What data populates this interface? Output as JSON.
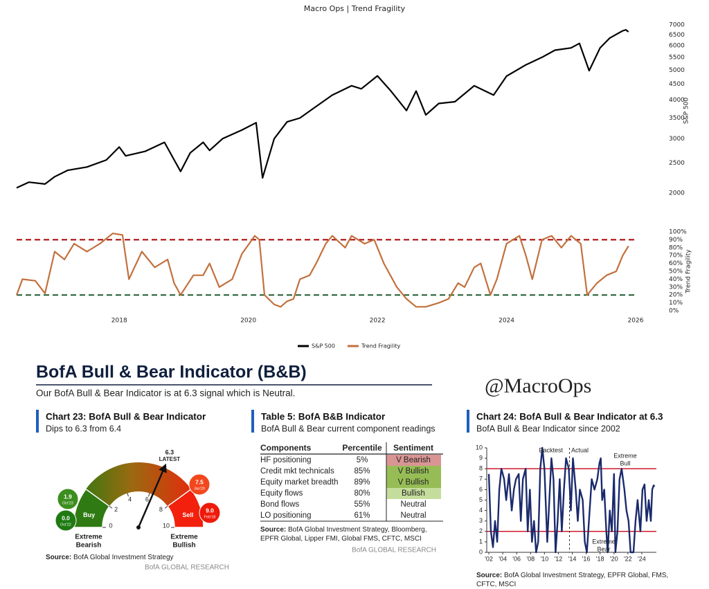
{
  "header": {
    "title": "BofA Bull & Bear Indicator (B&B)",
    "subtitle": "Our BofA Bull & Bear Indicator is at 6.3 signal which is Neutral.",
    "handle": "@MacroOps"
  },
  "chart_data": [
    {
      "type": "line",
      "title": "Macro Ops | Trend Fragility",
      "xlim": [
        2016.41,
        2026
      ],
      "xticks": [
        2018,
        2020,
        2022,
        2024,
        2026
      ],
      "ylog": true,
      "ylim": [
        1890,
        7410
      ],
      "yticks": [
        2000,
        2500,
        3000,
        3500,
        4000,
        4500,
        5000,
        5500,
        6000,
        6500,
        7000
      ],
      "ylabel": "S&P 500",
      "y2lim": [
        -2.6,
        102.6
      ],
      "y2ticks": [
        {
          "value": 0,
          "label": "0%"
        },
        {
          "value": 10,
          "label": "10%"
        },
        {
          "value": 20,
          "label": "20%"
        },
        {
          "value": 30,
          "label": "30%"
        },
        {
          "value": 40,
          "label": "40%"
        },
        {
          "value": 50,
          "label": "50%"
        },
        {
          "value": 60,
          "label": "60%"
        },
        {
          "value": 70,
          "label": "70%"
        },
        {
          "value": 80,
          "label": "80%"
        },
        {
          "value": 90,
          "label": "90%"
        },
        {
          "value": 100,
          "label": "100%"
        }
      ],
      "y2label": "Trend Fragility",
      "hlines": [
        {
          "value": 90,
          "color": "#a80000",
          "axis": "y2"
        },
        {
          "value": 20,
          "color": "#1e5a2e",
          "axis": "y2"
        }
      ],
      "legend": "bottom",
      "series": [
        {
          "name": "S&P 500",
          "color": "#000000",
          "x": [
            2016.41,
            2016.6,
            2016.85,
            2017.0,
            2017.2,
            2017.5,
            2017.8,
            2018.0,
            2018.1,
            2018.4,
            2018.7,
            2018.95,
            2019.1,
            2019.3,
            2019.4,
            2019.6,
            2019.9,
            2020.12,
            2020.22,
            2020.4,
            2020.6,
            2020.8,
            2021.0,
            2021.3,
            2021.6,
            2021.75,
            2022.0,
            2022.2,
            2022.45,
            2022.6,
            2022.75,
            2022.95,
            2023.2,
            2023.5,
            2023.8,
            2024.0,
            2024.3,
            2024.55,
            2024.75,
            2025.0,
            2025.13,
            2025.28,
            2025.45,
            2025.6,
            2025.8,
            2025.85,
            2025.89
          ],
          "values": [
            2080,
            2170,
            2140,
            2260,
            2370,
            2430,
            2560,
            2820,
            2640,
            2730,
            2920,
            2350,
            2700,
            2920,
            2750,
            3000,
            3200,
            3380,
            2240,
            3000,
            3400,
            3500,
            3750,
            4150,
            4450,
            4350,
            4790,
            4300,
            3700,
            4280,
            3580,
            3900,
            3950,
            4450,
            4150,
            4780,
            5200,
            5500,
            5800,
            5900,
            6100,
            4980,
            5900,
            6350,
            6700,
            6750,
            6650
          ]
        },
        {
          "name": "Trend Fragility",
          "color": "#c2703d",
          "axis": "y2",
          "x": [
            2016.41,
            2016.5,
            2016.7,
            2016.85,
            2017.0,
            2017.15,
            2017.3,
            2017.5,
            2017.7,
            2017.9,
            2018.05,
            2018.15,
            2018.35,
            2018.55,
            2018.75,
            2018.85,
            2018.95,
            2019.15,
            2019.3,
            2019.4,
            2019.55,
            2019.75,
            2019.9,
            2020.1,
            2020.17,
            2020.25,
            2020.4,
            2020.5,
            2020.6,
            2020.7,
            2020.8,
            2020.95,
            2021.05,
            2021.2,
            2021.3,
            2021.5,
            2021.6,
            2021.8,
            2021.95,
            2022.1,
            2022.3,
            2022.45,
            2022.6,
            2022.75,
            2022.95,
            2023.1,
            2023.25,
            2023.35,
            2023.5,
            2023.6,
            2023.75,
            2023.85,
            2024.0,
            2024.2,
            2024.3,
            2024.4,
            2024.55,
            2024.7,
            2024.85,
            2025.0,
            2025.15,
            2025.25,
            2025.4,
            2025.55,
            2025.7,
            2025.8,
            2025.89
          ],
          "values": [
            20,
            40,
            38,
            22,
            75,
            65,
            85,
            75,
            85,
            98,
            96,
            40,
            75,
            55,
            65,
            35,
            20,
            45,
            45,
            60,
            30,
            40,
            72,
            95,
            90,
            20,
            8,
            5,
            12,
            15,
            40,
            45,
            60,
            85,
            95,
            80,
            95,
            85,
            90,
            60,
            30,
            15,
            5,
            5,
            10,
            15,
            35,
            30,
            55,
            60,
            20,
            40,
            85,
            95,
            70,
            40,
            90,
            95,
            80,
            95,
            85,
            20,
            35,
            45,
            50,
            70,
            82
          ]
        }
      ]
    },
    {
      "type": "gauge",
      "title": "Chart 23: BofA Bull & Bear Indicator",
      "subtitle": "Dips to 6.3 from 6.4",
      "lim": [
        0,
        10
      ],
      "ticks": [
        0,
        2,
        4,
        6,
        8,
        10
      ],
      "value": 6.3,
      "value_note": "LATEST",
      "zones": [
        {
          "name": "Buy",
          "from": 0,
          "to": 2,
          "color": "#2f7a12"
        },
        {
          "name": "Sell",
          "from": 8,
          "to": 10,
          "color": "#f2200c"
        }
      ],
      "extremes": [
        [
          "Extreme",
          "Bearish"
        ],
        [
          "Extreme",
          "Bullish"
        ]
      ],
      "history": [
        {
          "value": 1.9,
          "label": "1.9",
          "date": "Oct'23",
          "color": "#3c8e1e"
        },
        {
          "value": 0,
          "label": "0.0",
          "date": "Oct'22",
          "color": "#1f7a12"
        },
        {
          "value": 7.5,
          "label": "7.5",
          "date": "Jan'20",
          "color": "#f2471c"
        },
        {
          "value": 9,
          "label": "9.0",
          "date": "Feb'18",
          "color": "#ee1a0c"
        }
      ],
      "source_label": "Source:",
      "source": "BofA Global Investment Strategy",
      "footer": "BofA GLOBAL RESEARCH"
    },
    {
      "type": "line",
      "title": "Chart 24: BofA Bull & Bear Indicator at 6.3",
      "subtitle": "BofA Bull & Bear Indicator since 2002",
      "xlim": [
        2001.7,
        2026.1
      ],
      "xticks": [
        {
          "value": 2002,
          "label": "'02"
        },
        {
          "value": 2004,
          "label": "'04"
        },
        {
          "value": 2006,
          "label": "'06"
        },
        {
          "value": 2008,
          "label": "'08"
        },
        {
          "value": 2010,
          "label": "'10"
        },
        {
          "value": 2012,
          "label": "'12"
        },
        {
          "value": 2014,
          "label": "'14"
        },
        {
          "value": 2016,
          "label": "'16"
        },
        {
          "value": 2018,
          "label": "'18"
        },
        {
          "value": 2020,
          "label": "'20"
        },
        {
          "value": 2022,
          "label": "'22"
        },
        {
          "value": 2024,
          "label": "'24"
        }
      ],
      "ylim": [
        0,
        10
      ],
      "yticks": [
        0,
        1,
        2,
        3,
        4,
        5,
        6,
        7,
        8,
        9,
        10
      ],
      "hlines": [
        {
          "value": 8,
          "color": "#d0182a"
        },
        {
          "value": 2,
          "color": "#d0182a"
        }
      ],
      "vline": 2013.6,
      "annotations": [
        [
          "Backtest"
        ],
        [
          "Actual"
        ],
        [
          "Extreme",
          "Bull"
        ],
        [
          "Extreme",
          "Bear"
        ]
      ],
      "series": [
        {
          "color": "#1a2a6c",
          "x": [
            2002.0,
            2002.3,
            2002.6,
            2002.9,
            2003.2,
            2003.5,
            2003.8,
            2004.2,
            2004.5,
            2004.9,
            2005.3,
            2005.6,
            2005.9,
            2006.3,
            2006.6,
            2006.9,
            2007.3,
            2007.6,
            2007.9,
            2008.2,
            2008.5,
            2008.8,
            2009.1,
            2009.4,
            2009.7,
            2010.0,
            2010.4,
            2010.7,
            2011.0,
            2011.3,
            2011.6,
            2011.9,
            2012.2,
            2012.5,
            2012.8,
            2013.1,
            2013.5,
            2013.8,
            2014.1,
            2014.5,
            2014.8,
            2015.1,
            2015.5,
            2015.8,
            2016.1,
            2016.4,
            2016.8,
            2017.2,
            2017.6,
            2017.9,
            2018.1,
            2018.3,
            2018.6,
            2018.9,
            2019.1,
            2019.4,
            2019.7,
            2020.0,
            2020.2,
            2020.5,
            2020.8,
            2021.1,
            2021.5,
            2021.8,
            2022.1,
            2022.4,
            2022.8,
            2023.1,
            2023.4,
            2023.8,
            2024.1,
            2024.4,
            2024.7,
            2025.0,
            2025.3,
            2025.5,
            2025.7,
            2025.85
          ],
          "values": [
            7.5,
            2,
            0.5,
            3,
            1,
            6,
            8,
            7,
            5,
            7.5,
            4,
            6,
            7,
            7.5,
            3,
            7,
            8,
            2,
            6,
            1,
            3,
            0,
            1,
            8,
            10,
            8,
            1,
            5,
            9,
            7,
            0,
            3,
            7,
            2,
            6,
            9,
            8,
            4,
            9,
            6,
            3,
            6,
            5,
            1,
            0,
            3,
            7,
            6,
            7,
            8.5,
            9,
            5,
            6,
            2,
            0,
            4,
            2,
            7.5,
            0,
            2,
            7,
            8,
            6,
            4,
            3,
            0,
            0,
            3,
            5,
            2,
            6,
            6.5,
            3,
            5,
            3,
            6,
            6.4,
            6.3
          ]
        }
      ],
      "source_label": "Source:",
      "source": "BofA Global Investment Strategy, EPFR Global, FMS, CFTC, MSCI"
    }
  ],
  "table": {
    "title": "Table 5: BofA B&B Indicator",
    "subtitle": "BofA Bull & Bear current component readings",
    "columns": [
      "Components",
      "Percentile",
      "Sentiment"
    ],
    "rows": [
      [
        "HF positioning",
        "5%",
        "V Bearish"
      ],
      [
        "Credit mkt technicals",
        "85%",
        "V Bullish"
      ],
      [
        "Equity market breadth",
        "89%",
        "V Bullish"
      ],
      [
        "Equity flows",
        "80%",
        "Bullish"
      ],
      [
        "Bond flows",
        "55%",
        "Neutral"
      ],
      [
        "LO positioning",
        "61%",
        "Neutral"
      ]
    ],
    "sentiment_colors": [
      "#d99594",
      "#96bd55",
      "#96bd55",
      "#c4dd9c",
      "#ffffff",
      "#ffffff"
    ],
    "source_label": "Source:",
    "source": "BofA Global Investment Strategy, Bloomberg, EPFR Global, Lipper FMI, Global FMS, CFTC, MSCI",
    "footer": "BofA GLOBAL RESEARCH"
  }
}
